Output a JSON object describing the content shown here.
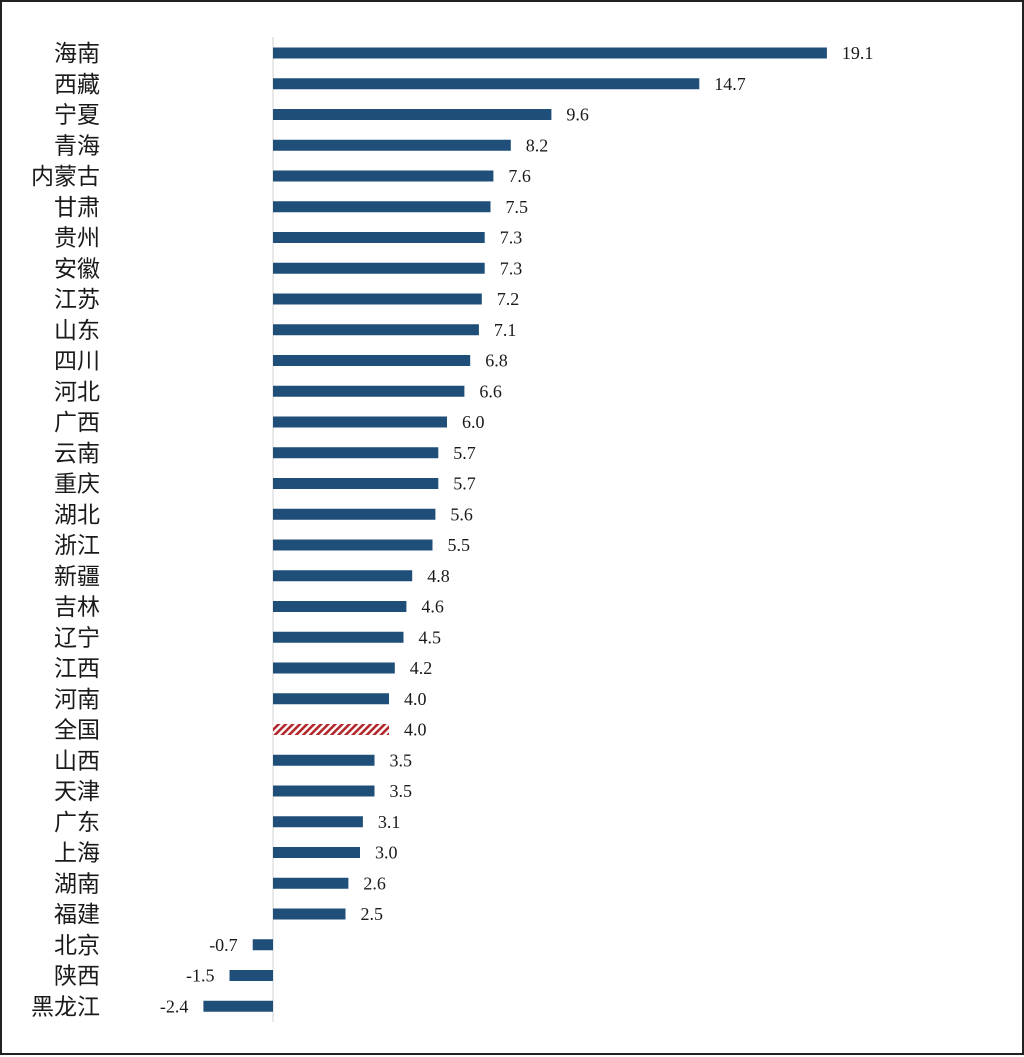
{
  "chart_data": {
    "type": "bar",
    "orientation": "horizontal",
    "title": "",
    "xlabel": "",
    "ylabel": "",
    "grid": false,
    "legend": "none",
    "colors": {
      "bar": "#1f4e79",
      "highlight": "#b3282d"
    },
    "highlight_category": "全国",
    "categories": [
      "海南",
      "西藏",
      "宁夏",
      "青海",
      "内蒙古",
      "甘肃",
      "贵州",
      "安徽",
      "江苏",
      "山东",
      "四川",
      "河北",
      "广西",
      "云南",
      "重庆",
      "湖北",
      "浙江",
      "新疆",
      "吉林",
      "辽宁",
      "江西",
      "河南",
      "全国",
      "山西",
      "天津",
      "广东",
      "上海",
      "湖南",
      "福建",
      "北京",
      "陕西",
      "黑龙江"
    ],
    "values": [
      19.1,
      14.7,
      9.6,
      8.2,
      7.6,
      7.5,
      7.3,
      7.3,
      7.2,
      7.1,
      6.8,
      6.6,
      6.0,
      5.7,
      5.7,
      5.6,
      5.5,
      4.8,
      4.6,
      4.5,
      4.2,
      4.0,
      4.0,
      3.5,
      3.5,
      3.1,
      3.0,
      2.6,
      2.5,
      -0.7,
      -1.5,
      -2.4
    ],
    "value_labels": [
      "19.1",
      "14.7",
      "9.6",
      "8.2",
      "7.6",
      "7.5",
      "7.3",
      "7.3",
      "7.2",
      "7.1",
      "6.8",
      "6.6",
      "6.0",
      "5.7",
      "5.7",
      "5.6",
      "5.5",
      "4.8",
      "4.6",
      "4.5",
      "4.2",
      "4.0",
      "4.0",
      "3.5",
      "3.5",
      "3.1",
      "3.0",
      "2.6",
      "2.5",
      "-0.7",
      "-1.5",
      "-2.4"
    ]
  }
}
